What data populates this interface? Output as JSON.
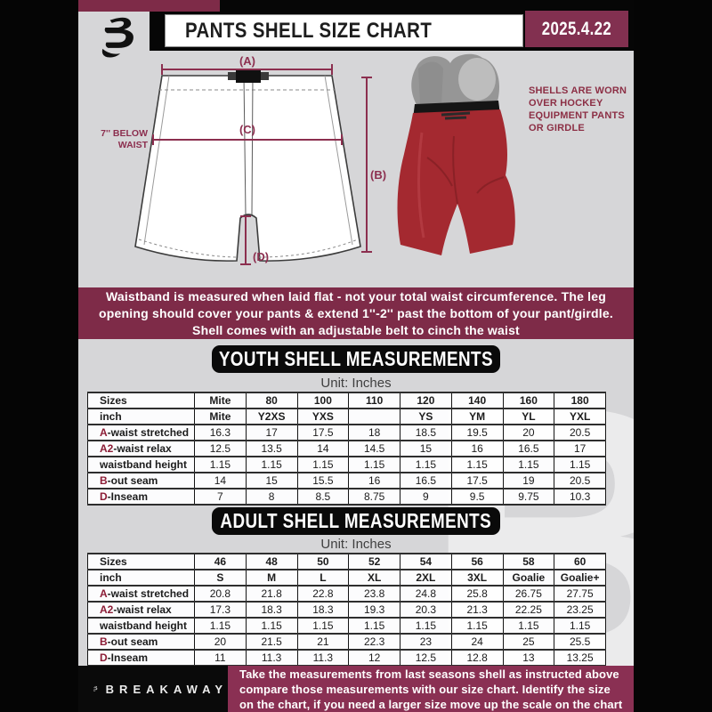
{
  "colors": {
    "maroon_banner": "#7e2b48",
    "maroon_date_box": "#823050",
    "maroon_footer": "#8a3053",
    "accent_letter_red": "#8c1d36",
    "page_black": "#050505",
    "zone_gray": "#d6d6d8",
    "shell_red": "#a42930"
  },
  "header": {
    "title": "PANTS SHELL SIZE CHART",
    "date": "2025.4.22"
  },
  "diagram": {
    "labels": {
      "a": "(A)",
      "b": "(B)",
      "c": "(C)",
      "d": "(D)"
    },
    "below_waist": {
      "line1": "7'' BELOW",
      "line2": "WAIST"
    },
    "shells_note": {
      "line1": "SHELLS ARE WORN",
      "line2": "OVER HOCKEY",
      "line3": "EQUIPMENT PANTS",
      "line4": "OR GIRDLE"
    }
  },
  "info_banner": {
    "line1": "Waistband is measured when laid flat - not your total waist circumference. The leg",
    "line2": "opening should cover your pants & extend 1''-2'' past the bottom of your pant/girdle.",
    "line3": "Shell comes with an adjustable belt to cinch the waist"
  },
  "youth": {
    "heading": "YOUTH SHELL MEASUREMENTS",
    "unit": "Unit: Inches",
    "rows": [
      [
        "Sizes",
        "Mite",
        "80",
        "100",
        "110",
        "120",
        "140",
        "160",
        "180"
      ],
      [
        "inch",
        "Mite",
        "Y2XS",
        "YXS",
        "",
        "YS",
        "YM",
        "YL",
        "YXL"
      ],
      [
        "A|-waist stretched",
        "16.3",
        "17",
        "17.5",
        "18",
        "18.5",
        "19.5",
        "20",
        "20.5"
      ],
      [
        "A2|-waist relax",
        "12.5",
        "13.5",
        "14",
        "14.5",
        "15",
        "16",
        "16.5",
        "17"
      ],
      [
        "waistband height",
        "1.15",
        "1.15",
        "1.15",
        "1.15",
        "1.15",
        "1.15",
        "1.15",
        "1.15"
      ],
      [
        "B|-out seam",
        "14",
        "15",
        "15.5",
        "16",
        "16.5",
        "17.5",
        "19",
        "20.5"
      ],
      [
        "D|-Inseam",
        "7",
        "8",
        "8.5",
        "8.75",
        "9",
        "9.5",
        "9.75",
        "10.3"
      ]
    ]
  },
  "adult": {
    "heading": "ADULT SHELL MEASUREMENTS",
    "unit": "Unit: Inches",
    "rows": [
      [
        "Sizes",
        "46",
        "48",
        "50",
        "52",
        "54",
        "56",
        "58",
        "60"
      ],
      [
        "inch",
        "S",
        "M",
        "L",
        "XL",
        "2XL",
        "3XL",
        "Goalie",
        "Goalie+"
      ],
      [
        "A|-waist stretched",
        "20.8",
        "21.8",
        "22.8",
        "23.8",
        "24.8",
        "25.8",
        "26.75",
        "27.75"
      ],
      [
        "A2|-waist relax",
        "17.3",
        "18.3",
        "18.3",
        "19.3",
        "20.3",
        "21.3",
        "22.25",
        "23.25"
      ],
      [
        "waistband height",
        "1.15",
        "1.15",
        "1.15",
        "1.15",
        "1.15",
        "1.15",
        "1.15",
        "1.15"
      ],
      [
        "B|-out seam",
        "20",
        "21.5",
        "21",
        "22.3",
        "23",
        "24",
        "25",
        "25.5"
      ],
      [
        "D|-Inseam",
        "11",
        "11.3",
        "11.3",
        "12",
        "12.5",
        "12.8",
        "13",
        "13.25"
      ]
    ]
  },
  "footer": {
    "brand": "BREAKAWAY",
    "line1": "Take the measurements from last seasons shell as instructed above",
    "line2": "compare those measurements  with our size chart. Identify the size",
    "line3": "on the chart, if you need a larger size move up the scale on the chart"
  },
  "watermark_letter": "B"
}
